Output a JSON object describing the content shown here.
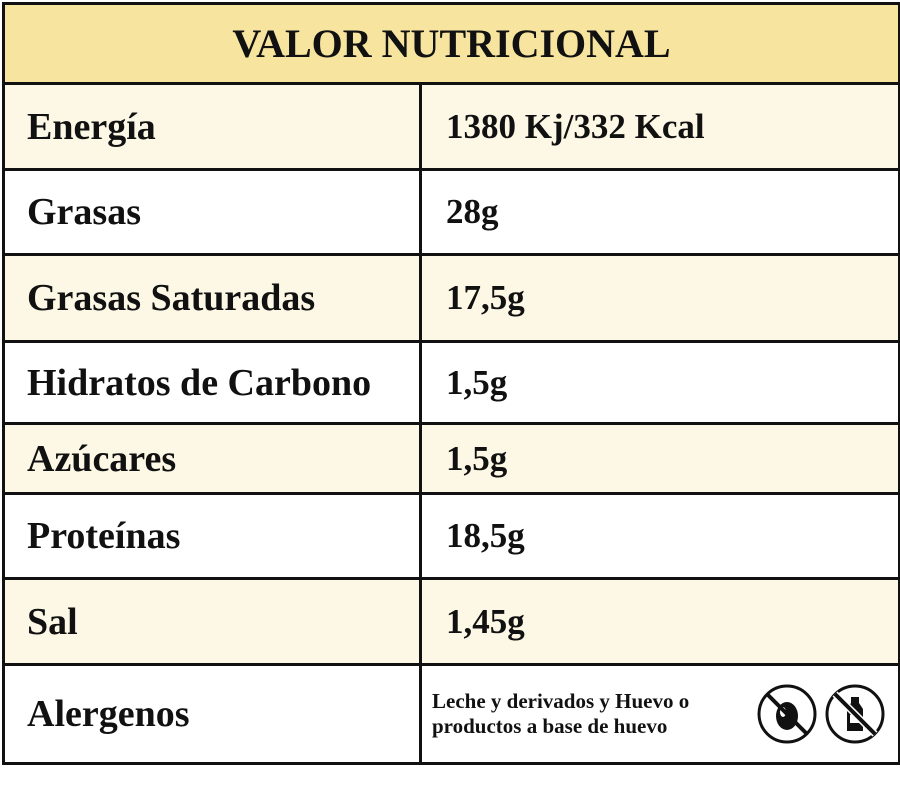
{
  "header": {
    "title": "VALOR NUTRICIONAL"
  },
  "table": {
    "rows": [
      [
        "Energía",
        "1380 Kj/332 Kcal"
      ],
      [
        "Grasas",
        "28g"
      ],
      [
        "Grasas Saturadas",
        "17,5g"
      ],
      [
        "Hidratos de Carbono",
        "1,5g"
      ],
      [
        "Azúcares",
        "1,5g"
      ],
      [
        "Proteínas",
        "18,5g"
      ],
      [
        "Sal",
        "1,45g"
      ],
      [
        "Alergenos",
        "Leche y derivados y Huevo o productos a base de huevo"
      ]
    ]
  }
}
